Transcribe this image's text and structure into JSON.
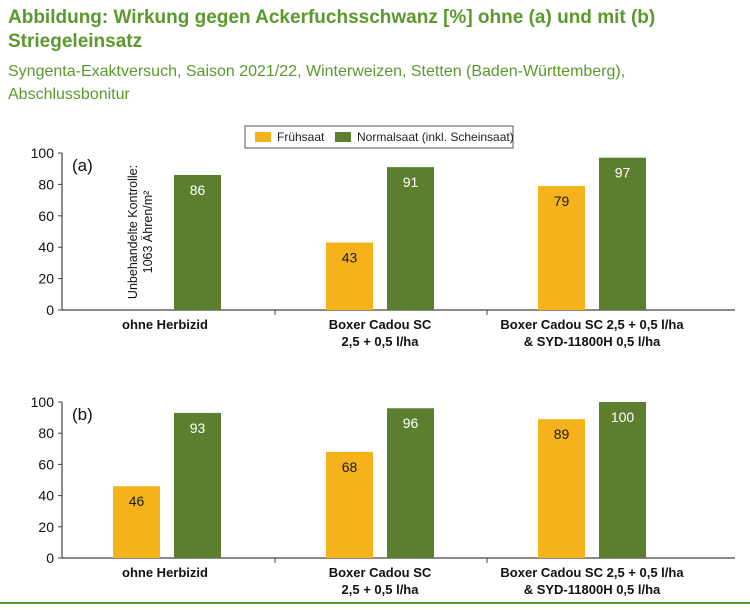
{
  "title": "Abbildung: Wirkung gegen Ackerfuchsschwanz [%] ohne (a) und mit (b) Striegeleinsatz",
  "subtitle": "Syngenta-Exaktversuch, Saison 2021/22, Winterweizen, Stetten (Baden-Württemberg), Abschlussbonitur",
  "colors": {
    "title": "#5a9a2c",
    "fruehsaat": "#f6b21b",
    "normalsaat": "#5b7f2e",
    "rule": "#5a9a2c"
  },
  "legend": {
    "placement": "top-center",
    "items": [
      "Frühsaat",
      "Normalsaat (inkl. Scheinsaat)"
    ]
  },
  "chart_data": [
    {
      "type": "bar",
      "panel_label": "(a)",
      "categories": [
        [
          "ohne Herbizid"
        ],
        [
          "Boxer Cadou SC",
          "2,5 + 0,5 l/ha"
        ],
        [
          "Boxer Cadou SC 2,5 + 0,5 l/ha",
          "& SYD-11800H 0,5 l/ha"
        ]
      ],
      "series": [
        {
          "name": "Frühsaat",
          "values": [
            null,
            43,
            79
          ]
        },
        {
          "name": "Normalsaat (inkl. Scheinsaat)",
          "values": [
            86,
            91,
            97
          ]
        }
      ],
      "yticks": [
        0,
        20,
        40,
        60,
        80,
        100
      ],
      "ylim": [
        0,
        100
      ],
      "annotation": [
        "Unbehandelte Kontrolle:",
        "1063 Ähren/m²"
      ],
      "grid": false
    },
    {
      "type": "bar",
      "panel_label": "(b)",
      "categories": [
        [
          "ohne Herbizid"
        ],
        [
          "Boxer Cadou SC",
          "2,5 + 0,5 l/ha"
        ],
        [
          "Boxer Cadou SC 2,5 + 0,5 l/ha",
          "& SYD-11800H 0,5 l/ha"
        ]
      ],
      "series": [
        {
          "name": "Frühsaat",
          "values": [
            46,
            68,
            89
          ]
        },
        {
          "name": "Normalsaat (inkl. Scheinsaat)",
          "values": [
            93,
            96,
            100
          ]
        }
      ],
      "yticks": [
        0,
        20,
        40,
        60,
        80,
        100
      ],
      "ylim": [
        0,
        100
      ],
      "grid": false
    }
  ]
}
